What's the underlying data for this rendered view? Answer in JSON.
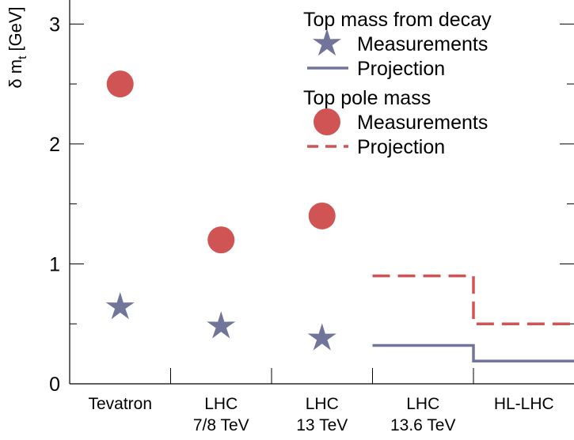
{
  "chart_data": {
    "type": "scatter",
    "categories": [
      "Tevatron",
      "LHC\n7/8 TeV",
      "LHC\n13 TeV",
      "LHC\n13.6 TeV",
      "HL-LHC"
    ],
    "ylabel": "δ m_t [GeV]",
    "ylim": [
      0,
      3.2
    ],
    "yticks": [
      0,
      1,
      2,
      3
    ],
    "grid": false,
    "legend": {
      "placement": "top-right",
      "groups": [
        {
          "title": "Top mass from decay",
          "entries": [
            {
              "label": "Measurements",
              "marker": "star"
            },
            {
              "label": "Projection",
              "line": "solid"
            }
          ]
        },
        {
          "title": "Top pole mass",
          "entries": [
            {
              "label": "Measurements",
              "marker": "circle"
            },
            {
              "label": "Projection",
              "line": "dashed"
            }
          ]
        }
      ]
    },
    "series": [
      {
        "group": "Top mass from decay",
        "kind": "Measurements",
        "marker": "star",
        "color": "#72759a",
        "points": [
          {
            "category": "Tevatron",
            "y": 0.64
          },
          {
            "category": "LHC\n7/8 TeV",
            "y": 0.48
          },
          {
            "category": "LHC\n13 TeV",
            "y": 0.38
          }
        ]
      },
      {
        "group": "Top pole mass",
        "kind": "Measurements",
        "marker": "circle",
        "color": "#d05454",
        "points": [
          {
            "category": "Tevatron",
            "y": 2.5
          },
          {
            "category": "LHC\n7/8 TeV",
            "y": 1.2
          },
          {
            "category": "LHC\n13 TeV",
            "y": 1.4
          }
        ]
      },
      {
        "group": "Top mass from decay",
        "kind": "Projection",
        "line": "solid",
        "color": "#72759a",
        "steps": [
          {
            "category": "LHC\n13.6 TeV",
            "y": 0.32
          },
          {
            "category": "HL-LHC",
            "y": 0.19
          }
        ]
      },
      {
        "group": "Top pole mass",
        "kind": "Projection",
        "line": "dashed",
        "color": "#d05454",
        "steps": [
          {
            "category": "LHC\n13.6 TeV",
            "y": 0.9
          },
          {
            "category": "HL-LHC",
            "y": 0.5
          }
        ]
      }
    ]
  }
}
